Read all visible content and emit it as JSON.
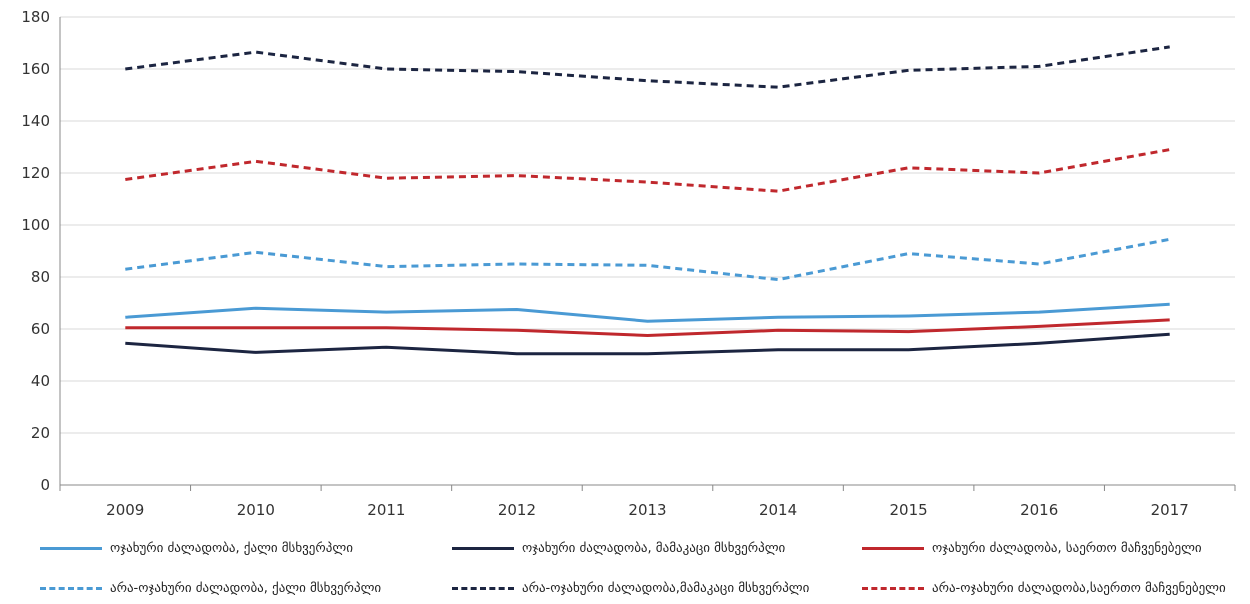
{
  "chart_data": {
    "type": "line",
    "x": [
      "2009",
      "2010",
      "2011",
      "2012",
      "2013",
      "2014",
      "2015",
      "2016",
      "2017"
    ],
    "ylim": [
      0,
      180
    ],
    "yticks": [
      0,
      20,
      40,
      60,
      80,
      100,
      120,
      140,
      160,
      180
    ],
    "grid": true,
    "legend_position": "bottom",
    "series": [
      {
        "name": "ოჯახური ძალადობა, ქალი მსხვერპლი",
        "color": "#4a9ad4",
        "dash": "solid",
        "values": [
          64.5,
          68,
          66.5,
          67.5,
          63,
          64.5,
          65,
          66.5,
          69.5
        ]
      },
      {
        "name": "ოჯახური ძალადობა, მამაკაცი მსხვერპლი",
        "color": "#1c2541",
        "dash": "solid",
        "values": [
          54.5,
          51,
          53,
          50.5,
          50.5,
          52,
          52,
          54.5,
          58
        ]
      },
      {
        "name": "ოჯახური ძალადობა, საერთო მაჩვენებელი",
        "color": "#c0282d",
        "dash": "solid",
        "values": [
          60.5,
          60.5,
          60.5,
          59.5,
          57.5,
          59.5,
          59,
          61,
          63.5
        ]
      },
      {
        "name": "არა-ოჯახური ძალადობა, ქალი მსხვერპლი",
        "color": "#4a9ad4",
        "dash": "dashed",
        "values": [
          83,
          89.5,
          84,
          85,
          84.5,
          79,
          89,
          85,
          94.5
        ]
      },
      {
        "name": "არა-ოჯახური ძალადობა,მამაკაცი მსხვერპლი",
        "color": "#1c2541",
        "dash": "dashed",
        "values": [
          160,
          166.5,
          160,
          159,
          155.5,
          153,
          159.5,
          161,
          168.5
        ]
      },
      {
        "name": "არა-ოჯახური ძალადობა,საერთო მაჩვენებელი",
        "color": "#c0282d",
        "dash": "dashed",
        "values": [
          117.5,
          124.5,
          118,
          119,
          116.5,
          113,
          122,
          120,
          129
        ]
      }
    ]
  }
}
